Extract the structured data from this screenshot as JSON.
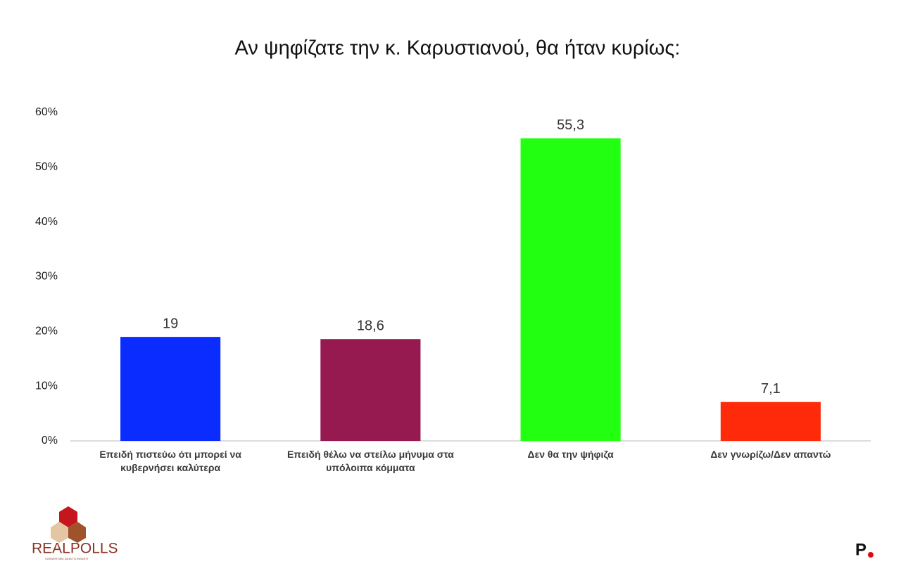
{
  "chart_data": {
    "type": "bar",
    "title": "Αν ψηφίζατε την κ. Καρυστιανού, θα ήταν κυρίως:",
    "categories": [
      "Επειδή πιστεύω ότι μπορεί να κυβερνήσει καλύτερα",
      "Επειδή θέλω να στείλω μήνυμα στα υπόλοιπα κόμματα",
      "Δεν θα την ψήφιζα",
      "Δεν γνωρίζω/Δεν απαντώ"
    ],
    "values": [
      19,
      18.6,
      55.3,
      7.1
    ],
    "value_labels": [
      "19",
      "18,6",
      "55,3",
      "7,1"
    ],
    "colors": [
      "#0a2cff",
      "#961950",
      "#22ff11",
      "#ff2a0a"
    ],
    "ylim": [
      0,
      60
    ],
    "yticks": [
      {
        "value": 0,
        "label": "0%"
      },
      {
        "value": 10,
        "label": "10%"
      },
      {
        "value": 20,
        "label": "20%"
      },
      {
        "value": 30,
        "label": "30%"
      },
      {
        "value": 40,
        "label": "40%"
      },
      {
        "value": 50,
        "label": "50%"
      },
      {
        "value": 60,
        "label": "60%"
      }
    ],
    "grid": false
  },
  "branding": {
    "logo": "REALPOLLS",
    "tagline": "CONVERTING DATA TO INSIGHT",
    "mark": "P"
  }
}
